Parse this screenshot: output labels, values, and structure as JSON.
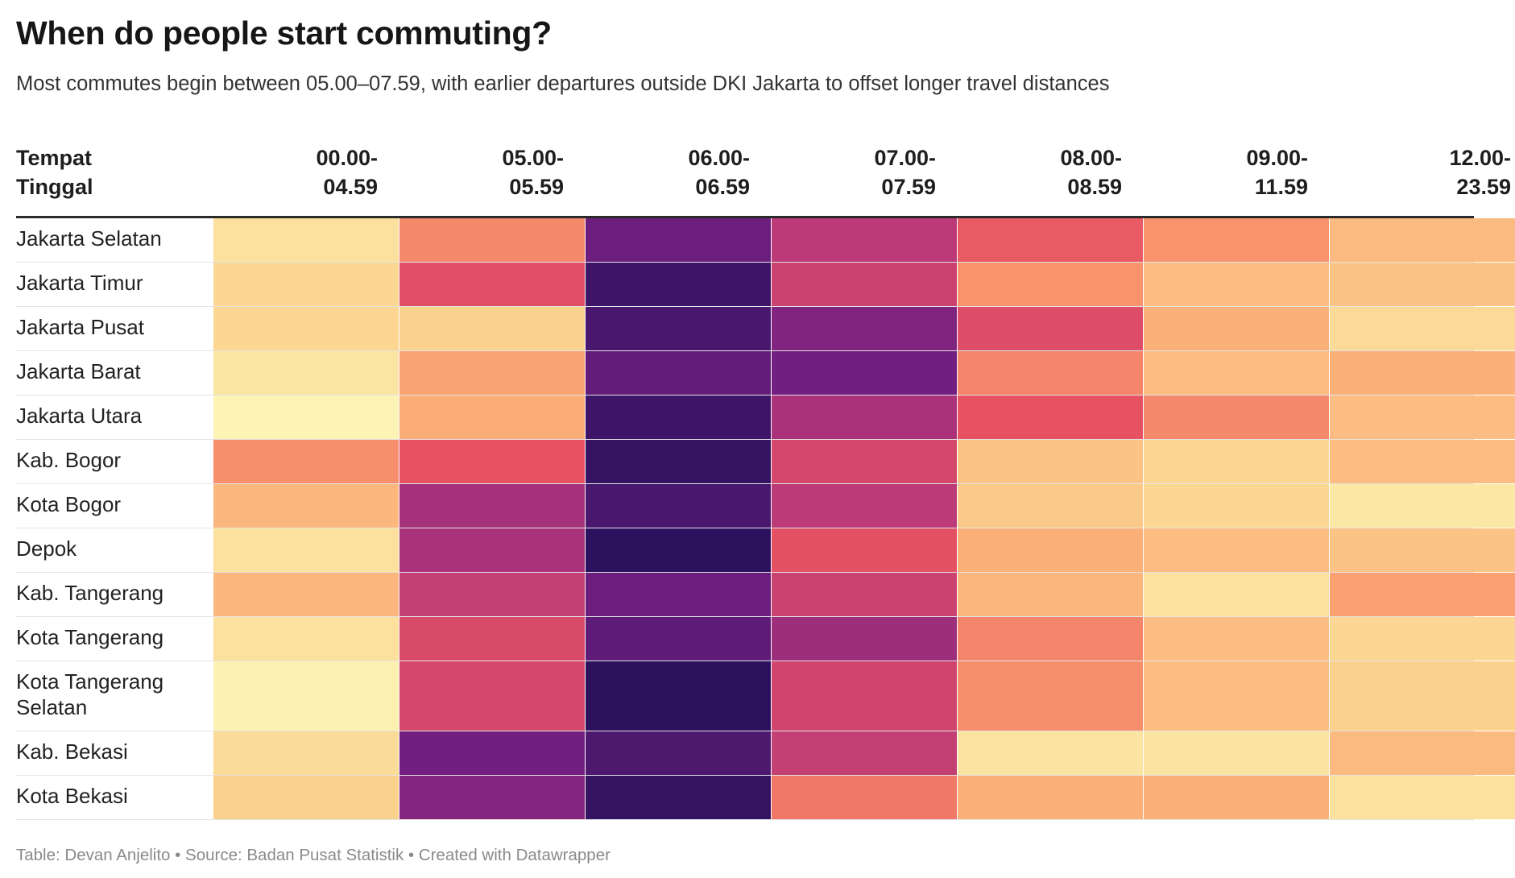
{
  "title": "When do people start commuting?",
  "subtitle": "Most commutes begin between 05.00–07.59, with earlier departures outside DKI Jakarta to offset longer travel distances",
  "footer": "Table: Devan Anjelito • Source: Badan Pusat Statistik • Created with Datawrapper",
  "chart_data": {
    "type": "heatmap",
    "title": "When do people start commuting?",
    "row_header": "Tempat\nTinggal",
    "columns": [
      "00.00-\n04.59",
      "05.00-\n05.59",
      "06.00-\n06.59",
      "07.00-\n07.59",
      "08.00-\n08.59",
      "09.00-\n11.59",
      "12.00-\n23.59"
    ],
    "rows": [
      {
        "label": "Jakarta Selatan",
        "values": [
          0.12,
          0.38,
          0.85,
          0.65,
          0.48,
          0.36,
          0.25
        ]
      },
      {
        "label": "Jakarta Timur",
        "values": [
          0.16,
          0.52,
          0.96,
          0.6,
          0.36,
          0.24,
          0.22
        ]
      },
      {
        "label": "Jakarta Pusat",
        "values": [
          0.16,
          0.18,
          0.93,
          0.8,
          0.53,
          0.28,
          0.15
        ]
      },
      {
        "label": "Jakarta Barat",
        "values": [
          0.1,
          0.32,
          0.87,
          0.83,
          0.39,
          0.24,
          0.28
        ]
      },
      {
        "label": "Jakarta Utara",
        "values": [
          0.04,
          0.29,
          0.96,
          0.7,
          0.5,
          0.38,
          0.24
        ]
      },
      {
        "label": "Kab. Bogor",
        "values": [
          0.37,
          0.5,
          0.98,
          0.56,
          0.22,
          0.16,
          0.24
        ]
      },
      {
        "label": "Kota Bogor",
        "values": [
          0.26,
          0.71,
          0.93,
          0.65,
          0.2,
          0.16,
          0.09
        ]
      },
      {
        "label": "Depok",
        "values": [
          0.12,
          0.7,
          1.0,
          0.51,
          0.28,
          0.24,
          0.22
        ]
      },
      {
        "label": "Kab. Tangerang",
        "values": [
          0.26,
          0.62,
          0.85,
          0.6,
          0.26,
          0.12,
          0.33
        ]
      },
      {
        "label": "Kota Tangerang",
        "values": [
          0.12,
          0.55,
          0.88,
          0.73,
          0.39,
          0.24,
          0.16
        ]
      },
      {
        "label": "Kota Tangerang\nSelatan",
        "values": [
          0.05,
          0.56,
          1.04,
          0.58,
          0.37,
          0.24,
          0.18
        ]
      },
      {
        "label": "Kab. Bekasi",
        "values": [
          0.14,
          0.83,
          0.92,
          0.62,
          0.11,
          0.11,
          0.25
        ]
      },
      {
        "label": "Kota Bekasi",
        "values": [
          0.18,
          0.79,
          0.98,
          0.42,
          0.28,
          0.28,
          0.12
        ]
      }
    ],
    "color_scale": [
      "#fcfdbf",
      "#fbd591",
      "#fb9f6f",
      "#e75263",
      "#b73779",
      "#721f81",
      "#2c115f"
    ]
  }
}
